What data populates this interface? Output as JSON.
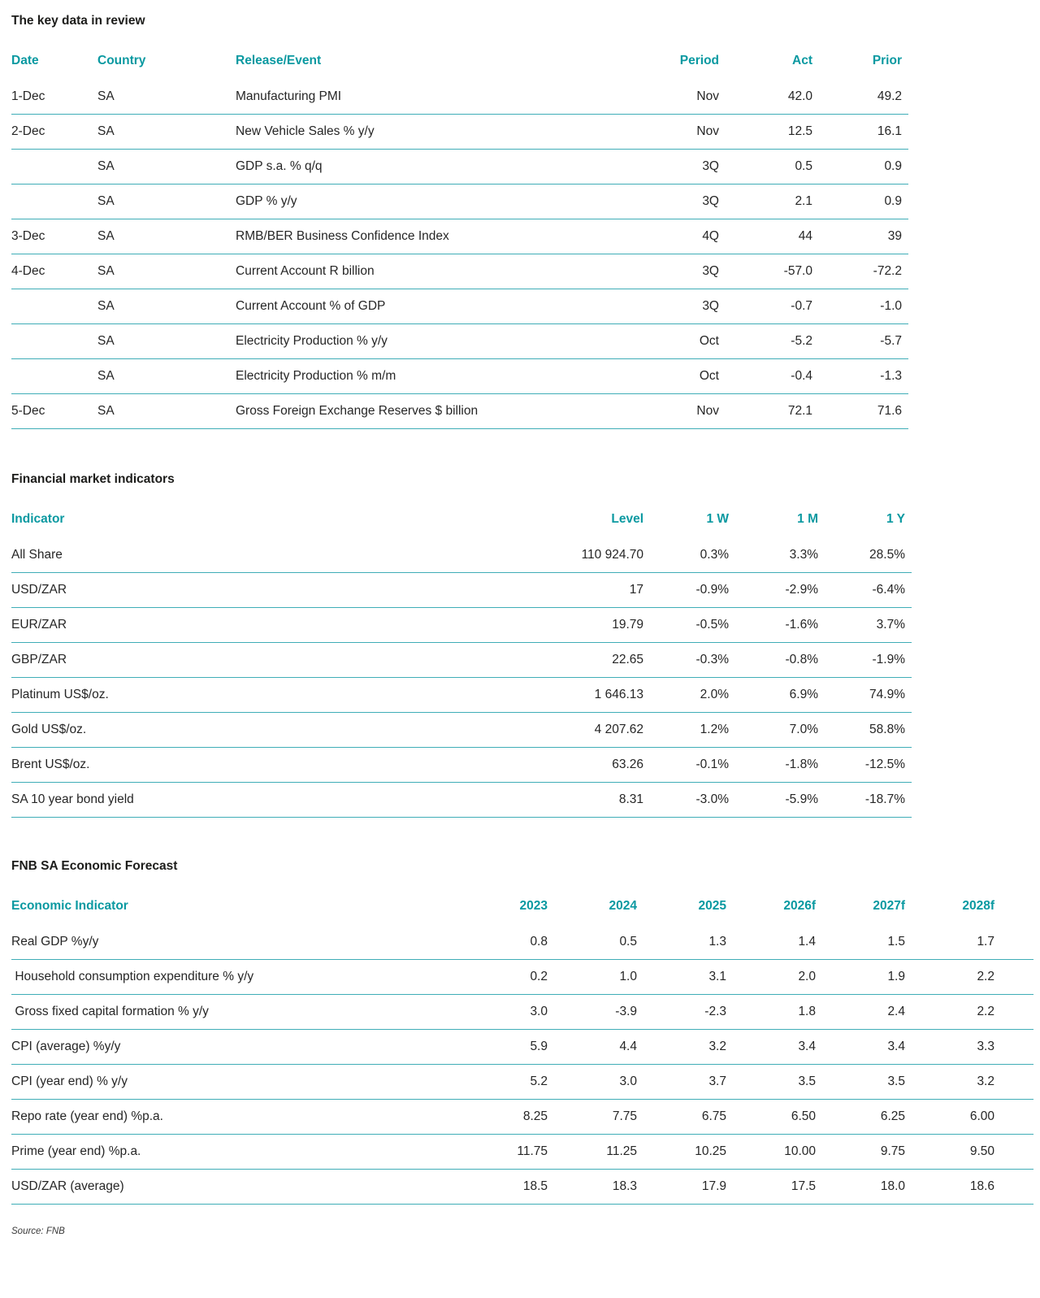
{
  "key_data": {
    "title": "The key data in review",
    "columns": [
      "Date",
      "Country",
      "Release/Event",
      "Period",
      "Act",
      "Prior"
    ],
    "rows": [
      [
        "1-Dec",
        "SA",
        "Manufacturing PMI",
        "Nov",
        "42.0",
        "49.2"
      ],
      [
        "2-Dec",
        "SA",
        "New Vehicle Sales % y/y",
        "Nov",
        "12.5",
        "16.1"
      ],
      [
        "",
        "SA",
        "GDP s.a. % q/q",
        "3Q",
        "0.5",
        "0.9"
      ],
      [
        "",
        "SA",
        "GDP % y/y",
        "3Q",
        "2.1",
        "0.9"
      ],
      [
        "3-Dec",
        "SA",
        "RMB/BER Business Confidence Index",
        "4Q",
        "44",
        "39"
      ],
      [
        "4-Dec",
        "SA",
        "Current Account R billion",
        "3Q",
        "-57.0",
        "-72.2"
      ],
      [
        "",
        "SA",
        "Current Account % of GDP",
        "3Q",
        "-0.7",
        "-1.0"
      ],
      [
        "",
        "SA",
        "Electricity Production % y/y",
        "Oct",
        "-5.2",
        "-5.7"
      ],
      [
        "",
        "SA",
        "Electricity Production % m/m",
        "Oct",
        "-0.4",
        "-1.3"
      ],
      [
        "5-Dec",
        "SA",
        "Gross Foreign Exchange Reserves $ billion",
        "Nov",
        "72.1",
        "71.6"
      ]
    ]
  },
  "financial_indicators": {
    "title": "Financial market indicators",
    "columns": [
      "Indicator",
      "Level",
      "1 W",
      "1 M",
      "1 Y"
    ],
    "rows": [
      [
        "All Share",
        "110 924.70",
        "0.3%",
        "3.3%",
        "28.5%"
      ],
      [
        "USD/ZAR",
        "17",
        "-0.9%",
        "-2.9%",
        "-6.4%"
      ],
      [
        "EUR/ZAR",
        "19.79",
        "-0.5%",
        "-1.6%",
        "3.7%"
      ],
      [
        "GBP/ZAR",
        "22.65",
        "-0.3%",
        "-0.8%",
        "-1.9%"
      ],
      [
        "Platinum US$/oz.",
        "1 646.13",
        "2.0%",
        "6.9%",
        "74.9%"
      ],
      [
        "Gold US$/oz.",
        "4 207.62",
        "1.2%",
        "7.0%",
        "58.8%"
      ],
      [
        "Brent US$/oz.",
        "63.26",
        "-0.1%",
        "-1.8%",
        "-12.5%"
      ],
      [
        "SA 10 year bond yield",
        "8.31",
        "-3.0%",
        "-5.9%",
        "-18.7%"
      ]
    ]
  },
  "economic_forecast": {
    "title": "FNB SA Economic Forecast",
    "columns": [
      "Economic Indicator",
      "2023",
      "2024",
      "2025",
      "2026f",
      "2027f",
      "2028f"
    ],
    "rows": [
      [
        "Real GDP %y/y",
        "0.8",
        "0.5",
        "1.3",
        "1.4",
        "1.5",
        "1.7"
      ],
      [
        " Household consumption expenditure % y/y",
        "0.2",
        "1.0",
        "3.1",
        "2.0",
        "1.9",
        "2.2"
      ],
      [
        " Gross fixed capital formation % y/y",
        "3.0",
        "-3.9",
        "-2.3",
        "1.8",
        "2.4",
        "2.2"
      ],
      [
        "CPI (average) %y/y",
        "5.9",
        "4.4",
        "3.2",
        "3.4",
        "3.4",
        "3.3"
      ],
      [
        "CPI (year end) % y/y",
        "5.2",
        "3.0",
        "3.7",
        "3.5",
        "3.5",
        "3.2"
      ],
      [
        "Repo rate (year end) %p.a.",
        "8.25",
        "7.75",
        "6.75",
        "6.50",
        "6.25",
        "6.00"
      ],
      [
        "Prime (year end) %p.a.",
        "11.75",
        "11.25",
        "10.25",
        "10.00",
        "9.75",
        "9.50"
      ],
      [
        "USD/ZAR (average)",
        "18.5",
        "18.3",
        "17.9",
        "17.5",
        "18.0",
        "18.6"
      ]
    ]
  },
  "footer": {
    "source_note": "Source: FNB"
  },
  "colors": {
    "accent_teal": "#0a99a1",
    "divider_teal": "#3fadb7",
    "body_text": "#262626"
  }
}
